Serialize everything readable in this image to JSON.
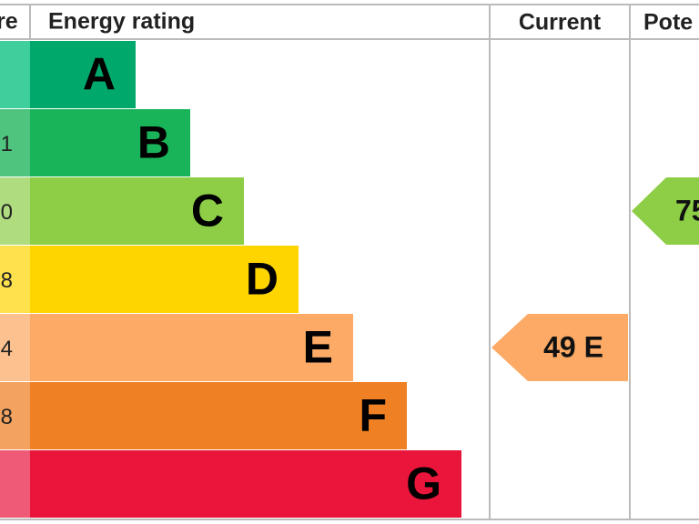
{
  "header": {
    "score": "re",
    "rating": "Energy rating",
    "current": "Current",
    "potential": "Pote"
  },
  "rows": [
    {
      "letter": "A"
    },
    {
      "score": "1",
      "letter": "B"
    },
    {
      "score": "0",
      "letter": "C"
    },
    {
      "score": "8",
      "letter": "D"
    },
    {
      "score": "4",
      "letter": "E"
    },
    {
      "score": "8",
      "letter": "F"
    },
    {
      "letter": "G"
    }
  ],
  "current": "49 E",
  "potential": "75"
}
